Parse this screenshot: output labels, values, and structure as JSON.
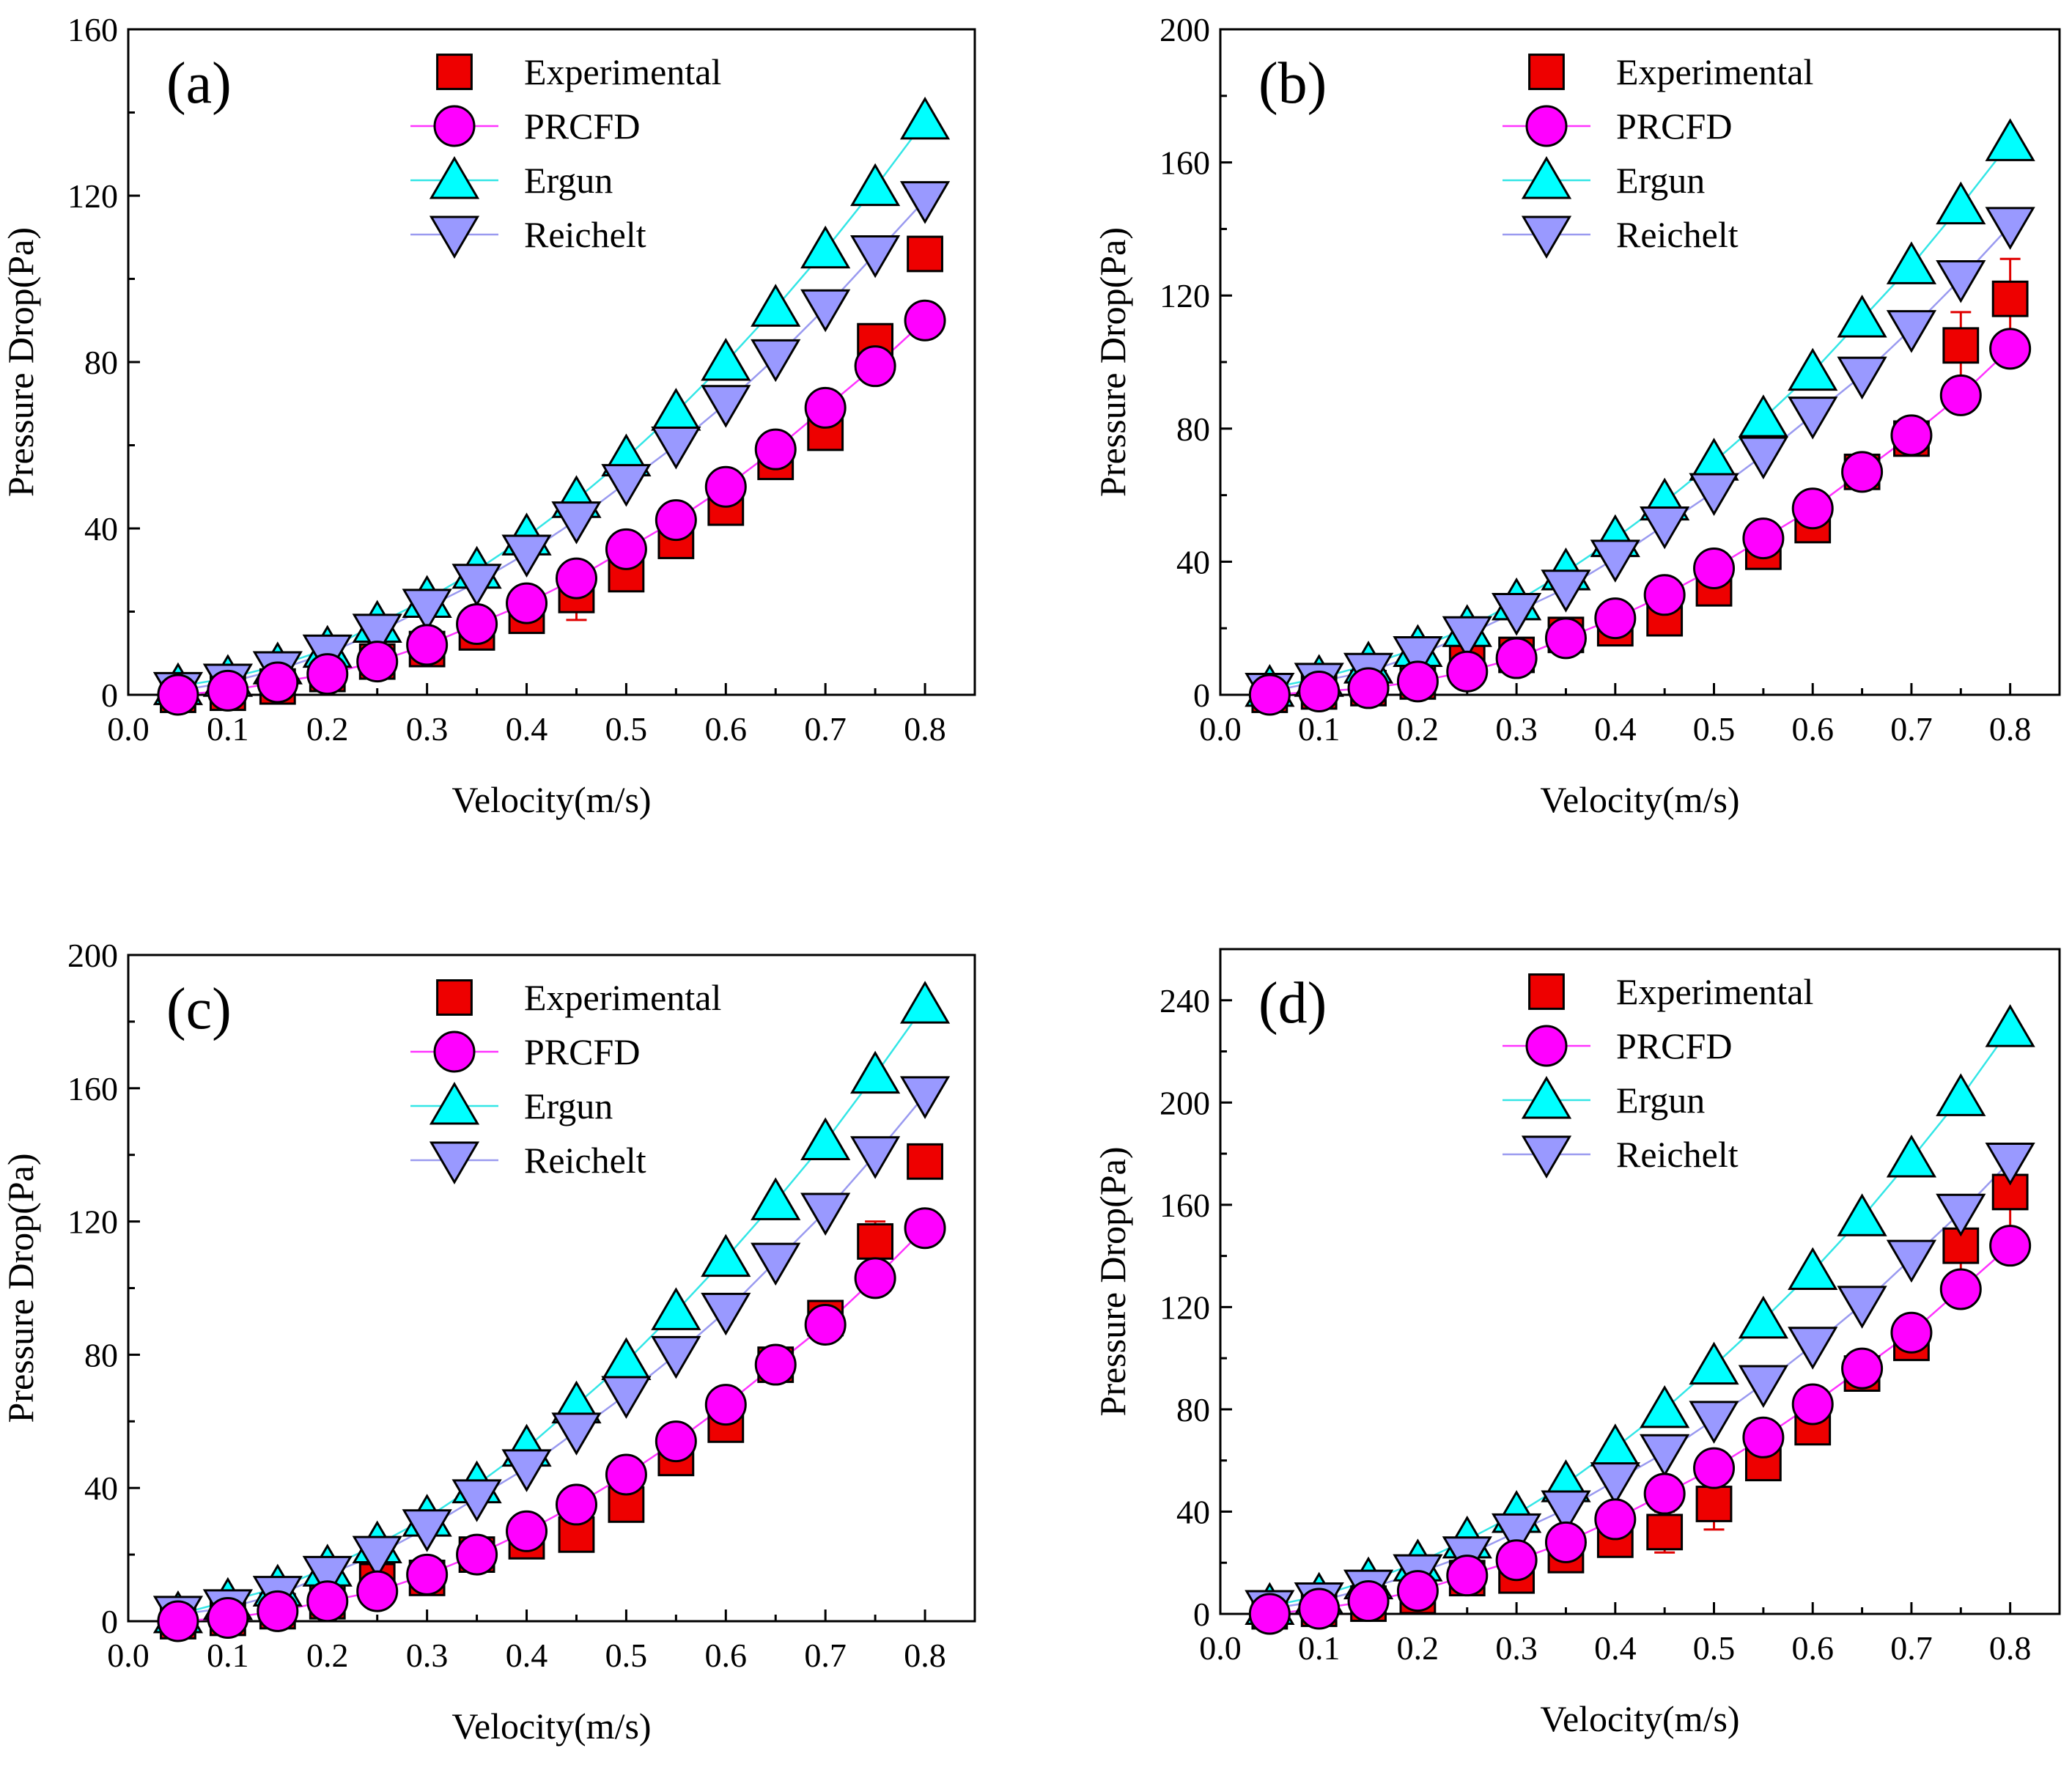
{
  "chart_data": [
    {
      "type": "scatter",
      "panel_label": "(a)",
      "xlabel": "Velocity(m/s)",
      "ylabel": "Pressure Drop(Pa)",
      "xlim": [
        0.0,
        0.85
      ],
      "ylim": [
        0,
        160
      ],
      "xticks": [
        "0.0",
        "0.1",
        "0.2",
        "0.3",
        "0.4",
        "0.5",
        "0.6",
        "0.7",
        "0.8"
      ],
      "yticks": [
        "0",
        "40",
        "80",
        "120",
        "160"
      ],
      "legend_position": "top-right",
      "x": [
        0.05,
        0.1,
        0.15,
        0.2,
        0.25,
        0.3,
        0.35,
        0.4,
        0.45,
        0.5,
        0.55,
        0.6,
        0.65,
        0.7,
        0.75,
        0.8
      ],
      "series": [
        {
          "name": "Experimental",
          "values": [
            0,
            0.5,
            2,
            5,
            8,
            11,
            15,
            19,
            24,
            29,
            37,
            45,
            56,
            63,
            85,
            106
          ],
          "error": [
            0,
            0,
            0,
            0,
            0,
            0,
            0,
            0,
            6,
            4,
            0,
            0,
            0,
            0,
            0,
            0
          ]
        },
        {
          "name": "PRCFD",
          "values": [
            0,
            1,
            3,
            5,
            8,
            12,
            17,
            22,
            28,
            35,
            42,
            50,
            59,
            69,
            79,
            90
          ]
        },
        {
          "name": "Ergun",
          "values": [
            2,
            4,
            7,
            11,
            17,
            23,
            30,
            38,
            47,
            57,
            68,
            80,
            93,
            107,
            122,
            138
          ]
        },
        {
          "name": "Reichelt",
          "values": [
            1,
            3,
            6,
            10,
            15,
            21,
            27,
            34,
            42,
            51,
            60,
            70,
            81,
            93,
            106,
            119
          ]
        }
      ]
    },
    {
      "type": "scatter",
      "panel_label": "(b)",
      "xlabel": "Velocity(m/s)",
      "ylabel": "Pressure Drop(Pa)",
      "xlim": [
        0.0,
        0.85
      ],
      "ylim": [
        0,
        200
      ],
      "xticks": [
        "0.0",
        "0.1",
        "0.2",
        "0.3",
        "0.4",
        "0.5",
        "0.6",
        "0.7",
        "0.8"
      ],
      "yticks": [
        "0",
        "40",
        "80",
        "120",
        "160",
        "200"
      ],
      "legend_position": "top-right",
      "x": [
        0.05,
        0.1,
        0.15,
        0.2,
        0.25,
        0.3,
        0.35,
        0.4,
        0.45,
        0.5,
        0.55,
        0.6,
        0.65,
        0.7,
        0.75,
        0.8
      ],
      "series": [
        {
          "name": "Experimental",
          "values": [
            0,
            1,
            2,
            4,
            11,
            12,
            18,
            20,
            23,
            32,
            43,
            51,
            67,
            77,
            105,
            119
          ],
          "error": [
            0,
            0,
            0,
            0,
            0,
            0,
            0,
            0,
            0,
            0,
            0,
            0,
            0,
            0,
            10,
            12
          ]
        },
        {
          "name": "PRCFD",
          "values": [
            0,
            1,
            2,
            4,
            7,
            11,
            17,
            23,
            30,
            38,
            47,
            56,
            67,
            78,
            90,
            104
          ]
        },
        {
          "name": "Ergun",
          "values": [
            2,
            5,
            9,
            14,
            20,
            28,
            37,
            47,
            58,
            70,
            83,
            97,
            113,
            129,
            147,
            166
          ]
        },
        {
          "name": "Reichelt",
          "values": [
            1,
            4,
            7,
            12,
            18,
            25,
            32,
            41,
            51,
            61,
            72,
            84,
            96,
            110,
            125,
            141
          ]
        }
      ]
    },
    {
      "type": "scatter",
      "panel_label": "(c)",
      "xlabel": "Velocity(m/s)",
      "ylabel": "Pressure Drop(Pa)",
      "xlim": [
        0.0,
        0.85
      ],
      "ylim": [
        0,
        200
      ],
      "xticks": [
        "0.0",
        "0.1",
        "0.2",
        "0.3",
        "0.4",
        "0.5",
        "0.6",
        "0.7",
        "0.8"
      ],
      "yticks": [
        "0",
        "40",
        "80",
        "120",
        "160",
        "200"
      ],
      "legend_position": "top-right",
      "x": [
        0.05,
        0.1,
        0.15,
        0.2,
        0.25,
        0.3,
        0.35,
        0.4,
        0.45,
        0.5,
        0.55,
        0.6,
        0.65,
        0.7,
        0.75,
        0.8
      ],
      "series": [
        {
          "name": "Experimental",
          "values": [
            0,
            1,
            3,
            6,
            12,
            13,
            20,
            24,
            26,
            35,
            49,
            59,
            77,
            91,
            114,
            138
          ],
          "error": [
            0,
            0,
            0,
            0,
            0,
            0,
            0,
            0,
            0,
            0,
            0,
            0,
            0,
            0,
            6,
            4
          ]
        },
        {
          "name": "PRCFD",
          "values": [
            0,
            1,
            3,
            6,
            9,
            14,
            20,
            27,
            35,
            44,
            54,
            65,
            77,
            89,
            103,
            118
          ]
        },
        {
          "name": "Ergun",
          "values": [
            2,
            6,
            10,
            16,
            23,
            31,
            41,
            52,
            65,
            78,
            93,
            109,
            126,
            144,
            164,
            185
          ]
        },
        {
          "name": "Reichelt",
          "values": [
            2,
            4,
            8,
            14,
            20,
            28,
            37,
            46,
            57,
            68,
            80,
            93,
            108,
            123,
            140,
            158
          ]
        }
      ]
    },
    {
      "type": "scatter",
      "panel_label": "(d)",
      "xlabel": "Velocity(m/s)",
      "ylabel": "Pressure Drop(Pa)",
      "xlim": [
        0.0,
        0.85
      ],
      "ylim": [
        0,
        260
      ],
      "xticks": [
        "0.0",
        "0.1",
        "0.2",
        "0.3",
        "0.4",
        "0.5",
        "0.6",
        "0.7",
        "0.8"
      ],
      "yticks": [
        "0",
        "40",
        "80",
        "120",
        "160",
        "200",
        "240"
      ],
      "legend_position": "top-right",
      "x": [
        0.05,
        0.1,
        0.15,
        0.2,
        0.25,
        0.3,
        0.35,
        0.4,
        0.45,
        0.5,
        0.55,
        0.6,
        0.65,
        0.7,
        0.75,
        0.8
      ],
      "series": [
        {
          "name": "Experimental",
          "values": [
            1,
            2,
            4,
            7,
            14,
            15,
            23,
            29,
            32,
            43,
            59,
            73,
            94,
            106,
            144,
            165
          ],
          "error": [
            0,
            0,
            0,
            0,
            0,
            0,
            0,
            0,
            8,
            10,
            0,
            0,
            0,
            0,
            16,
            16
          ]
        },
        {
          "name": "PRCFD",
          "values": [
            0,
            2,
            5,
            9,
            15,
            21,
            28,
            37,
            47,
            57,
            69,
            82,
            96,
            110,
            127,
            144
          ]
        },
        {
          "name": "Ergun",
          "values": [
            3,
            7,
            13,
            20,
            29,
            39,
            51,
            65,
            80,
            97,
            115,
            134,
            155,
            178,
            202,
            229
          ]
        },
        {
          "name": "Reichelt",
          "values": [
            2,
            5,
            10,
            16,
            23,
            32,
            41,
            52,
            63,
            76,
            90,
            105,
            121,
            139,
            157,
            177
          ]
        }
      ]
    }
  ],
  "series_colors": {
    "Experimental": "#ee0000",
    "PRCFD": "#ff00ff",
    "Ergun": "#00ffff",
    "Reichelt": "#9999ff"
  },
  "line_colors": {
    "PRCFD": "#ff33ff",
    "Ergun": "#33e6e6",
    "Reichelt": "#9a9af0"
  }
}
